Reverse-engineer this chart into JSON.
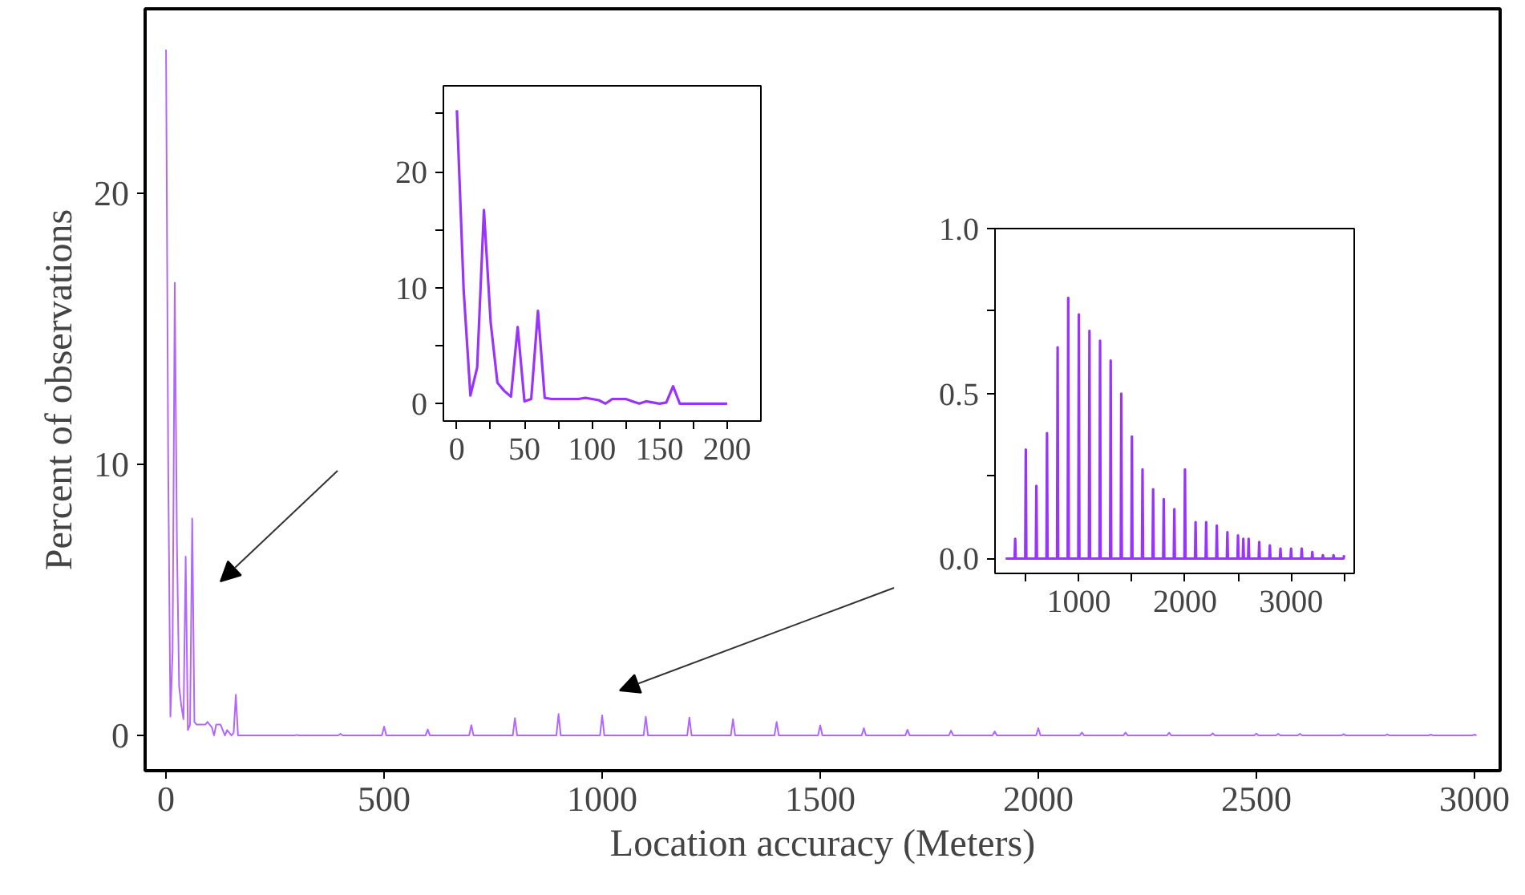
{
  "chart_data": [
    {
      "type": "line",
      "xlabel": "Location accuracy (Meters)",
      "ylabel": "Percent of observations",
      "xlim": [
        -48,
        3059
      ],
      "ylim": [
        -1.3,
        26.8
      ],
      "xticks": [
        0,
        500,
        1000,
        1500,
        2000,
        2500,
        3000
      ],
      "yticks": [
        0,
        10,
        20
      ],
      "marker": "none",
      "line_style": "solid",
      "series": [
        {
          "color": "#b266ff",
          "x": [
            0,
            5,
            10,
            15,
            20,
            25,
            30,
            35,
            40,
            45,
            50,
            55,
            60,
            65,
            70,
            75,
            80,
            85,
            90,
            95,
            100,
            105,
            110,
            115,
            120,
            125,
            130,
            135,
            140,
            145,
            150,
            155,
            160,
            165,
            170,
            175,
            180,
            185,
            190,
            195,
            200,
            295,
            300,
            305,
            395,
            400,
            405,
            495,
            500,
            505,
            595,
            600,
            605,
            695,
            700,
            705,
            795,
            800,
            805,
            895,
            900,
            905,
            995,
            1000,
            1005,
            1095,
            1100,
            1105,
            1195,
            1200,
            1205,
            1295,
            1300,
            1305,
            1395,
            1400,
            1405,
            1495,
            1500,
            1505,
            1595,
            1600,
            1605,
            1695,
            1700,
            1705,
            1795,
            1800,
            1805,
            1895,
            1900,
            1905,
            1995,
            2000,
            2005,
            2095,
            2100,
            2105,
            2195,
            2200,
            2205,
            2295,
            2300,
            2305,
            2395,
            2400,
            2405,
            2495,
            2500,
            2505,
            2545,
            2550,
            2555,
            2595,
            2600,
            2605,
            2695,
            2700,
            2705,
            2795,
            2800,
            2805,
            2895,
            2900,
            2905,
            2995,
            3000,
            3005
          ],
          "values": [
            25.3,
            9.8,
            0.7,
            3.1,
            16.7,
            7.0,
            1.8,
            1.1,
            0.6,
            6.6,
            0.2,
            0.4,
            8.0,
            0.5,
            0.4,
            0.4,
            0.4,
            0.4,
            0.4,
            0.5,
            0.4,
            0.3,
            0.0,
            0.4,
            0.4,
            0.4,
            0.2,
            0.0,
            0.2,
            0.1,
            0.0,
            0.1,
            1.5,
            0.0,
            0.0,
            0.0,
            0.0,
            0.0,
            0.0,
            0.0,
            0.0,
            0,
            0.02,
            0,
            0,
            0.06,
            0,
            0,
            0.33,
            0,
            0,
            0.22,
            0,
            0,
            0.38,
            0,
            0,
            0.64,
            0,
            0,
            0.79,
            0,
            0,
            0.74,
            0,
            0,
            0.69,
            0,
            0,
            0.66,
            0,
            0,
            0.6,
            0,
            0,
            0.5,
            0,
            0,
            0.37,
            0,
            0,
            0.27,
            0,
            0,
            0.21,
            0,
            0,
            0.18,
            0,
            0,
            0.15,
            0,
            0,
            0.27,
            0,
            0,
            0.11,
            0,
            0,
            0.11,
            0,
            0,
            0.1,
            0,
            0,
            0.08,
            0,
            0,
            0.07,
            0,
            0,
            0.06,
            0,
            0,
            0.06,
            0,
            0,
            0.05,
            0,
            0,
            0.04,
            0,
            0,
            0.03,
            0,
            0,
            0.03,
            0
          ]
        }
      ]
    },
    {
      "type": "line",
      "xlim": [
        -10,
        225
      ],
      "ylim": [
        -1.5,
        27.4
      ],
      "xticks": [
        0,
        {
          "value": 25,
          "label": null
        },
        50,
        {
          "value": 75,
          "label": null
        },
        100,
        {
          "value": 125,
          "label": null
        },
        150,
        {
          "value": 175,
          "label": null
        },
        200
      ],
      "yticks": [
        0,
        {
          "value": 5,
          "label": null
        },
        10,
        {
          "value": 15,
          "label": null
        },
        20,
        {
          "value": 25,
          "label": null
        }
      ],
      "marker": "none",
      "line_style": "solid",
      "series": [
        {
          "color": "#9933ff",
          "x": [
            0,
            5,
            10,
            15,
            20,
            25,
            30,
            35,
            40,
            45,
            50,
            55,
            60,
            65,
            70,
            75,
            80,
            85,
            90,
            95,
            100,
            105,
            110,
            115,
            120,
            125,
            130,
            135,
            140,
            145,
            150,
            155,
            160,
            165,
            170,
            175,
            180,
            185,
            190,
            195,
            200
          ],
          "values": [
            25.3,
            9.8,
            0.7,
            3.1,
            16.7,
            7.0,
            1.8,
            1.1,
            0.6,
            6.6,
            0.2,
            0.4,
            8.0,
            0.5,
            0.4,
            0.4,
            0.4,
            0.4,
            0.4,
            0.5,
            0.4,
            0.3,
            0.0,
            0.4,
            0.4,
            0.4,
            0.2,
            0.0,
            0.2,
            0.1,
            0.0,
            0.1,
            1.5,
            0.0,
            0.0,
            0.0,
            0.0,
            0.0,
            0.0,
            0.0,
            0.0
          ]
        }
      ]
    },
    {
      "type": "line",
      "xlim": [
        210,
        3595
      ],
      "ylim": [
        -0.045,
        1.0
      ],
      "xticks": [
        {
          "value": 500,
          "label": null
        },
        1000,
        {
          "value": 1500,
          "label": null
        },
        2000,
        {
          "value": 2500,
          "label": null
        },
        3000,
        {
          "value": 3500,
          "label": null
        }
      ],
      "yticks": [
        {
          "value": 0,
          "label": "0.0"
        },
        {
          "value": 0.25,
          "label": null
        },
        {
          "value": 0.5,
          "label": "0.5"
        },
        {
          "value": 0.75,
          "label": null
        },
        {
          "value": 1.0,
          "label": "1.0"
        }
      ],
      "marker": "none",
      "line_style": "solid",
      "series": [
        {
          "color": "#9933ff",
          "x": [
            310,
            395,
            400,
            405,
            495,
            500,
            505,
            595,
            600,
            605,
            695,
            700,
            705,
            795,
            800,
            805,
            895,
            900,
            905,
            995,
            1000,
            1005,
            1095,
            1100,
            1105,
            1195,
            1200,
            1205,
            1295,
            1300,
            1305,
            1395,
            1400,
            1405,
            1495,
            1500,
            1505,
            1595,
            1600,
            1605,
            1695,
            1700,
            1705,
            1795,
            1800,
            1805,
            1895,
            1900,
            1905,
            1995,
            2000,
            2005,
            2095,
            2100,
            2105,
            2195,
            2200,
            2205,
            2295,
            2300,
            2305,
            2395,
            2400,
            2405,
            2495,
            2500,
            2505,
            2545,
            2550,
            2555,
            2595,
            2600,
            2605,
            2695,
            2700,
            2705,
            2795,
            2800,
            2805,
            2895,
            2900,
            2905,
            2995,
            3000,
            3005,
            3095,
            3100,
            3105,
            3195,
            3200,
            3205,
            3295,
            3300,
            3305,
            3395,
            3400,
            3405,
            3495,
            3500
          ],
          "values": [
            0,
            0,
            0.06,
            0,
            0,
            0.33,
            0,
            0,
            0.22,
            0,
            0,
            0.38,
            0,
            0,
            0.64,
            0,
            0,
            0.79,
            0,
            0,
            0.74,
            0,
            0,
            0.69,
            0,
            0,
            0.66,
            0,
            0,
            0.6,
            0,
            0,
            0.5,
            0,
            0,
            0.37,
            0,
            0,
            0.27,
            0,
            0,
            0.21,
            0,
            0,
            0.18,
            0,
            0,
            0.15,
            0,
            0,
            0.27,
            0,
            0,
            0.11,
            0,
            0,
            0.11,
            0,
            0,
            0.1,
            0,
            0,
            0.08,
            0,
            0,
            0.07,
            0,
            0,
            0.06,
            0,
            0,
            0.06,
            0,
            0,
            0.05,
            0,
            0,
            0.04,
            0,
            0,
            0.03,
            0,
            0,
            0.03,
            0,
            0,
            0.03,
            0,
            0,
            0.02,
            0,
            0,
            0.01,
            0,
            0,
            0.01,
            0,
            0,
            0.01
          ]
        }
      ]
    }
  ]
}
